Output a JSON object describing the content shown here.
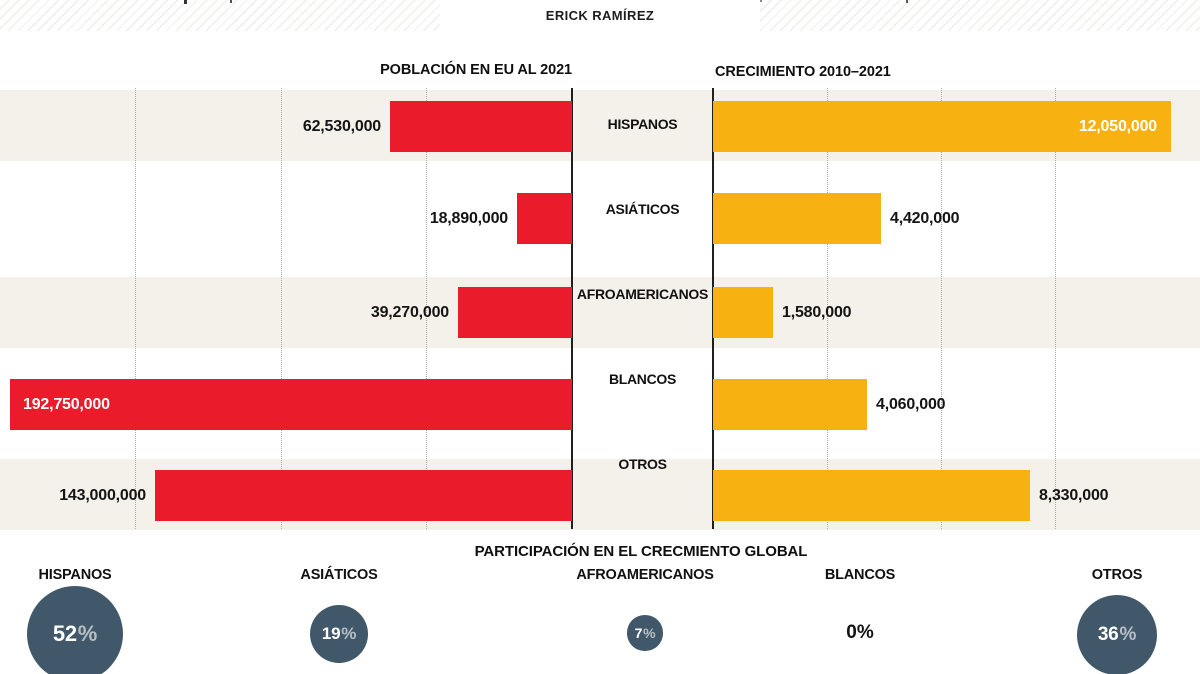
{
  "top": {
    "author": "ERICK RAMÍREZ"
  },
  "sections": {
    "population_title": "POBLACIÓN EN EU AL 2021",
    "growth_title": "CRECIMIENTO 2010–2021",
    "participation_title": "PARTICIPACIÓN EN EL CRECMIENTO GLOBAL"
  },
  "colors": {
    "population_bar": "#ea1c2c",
    "growth_bar": "#f7b211",
    "row_band": "#f4f1ea",
    "bubble": "#41586a",
    "axis": "#1f1f1f"
  },
  "chart_data": [
    {
      "type": "bar",
      "title": "POBLACIÓN EN EU AL 2021",
      "orientation": "horizontal",
      "direction": "right-to-left",
      "categories": [
        "HISPANOS",
        "ASIÁTICOS",
        "AFROAMERICANOS",
        "BLANCOS",
        "OTROS"
      ],
      "values": [
        62530000,
        18890000,
        39270000,
        192750000,
        143000000
      ],
      "labels": [
        "62,530,000",
        "18,890,000",
        "39,270,000",
        "192,750,000",
        "143,000,000"
      ],
      "xlim": [
        0,
        192750000
      ],
      "grid": "dotted vertical lines every 50,000,000",
      "row_shading": "alternate beige bands on rows 1, 3, 5",
      "bar_color": "#ea1c2c"
    },
    {
      "type": "bar",
      "title": "CRECIMIENTO 2010–2021",
      "orientation": "horizontal",
      "direction": "left-to-right",
      "categories": [
        "HISPANOS",
        "ASIÁTICOS",
        "AFROAMERICANOS",
        "BLANCOS",
        "OTROS"
      ],
      "values": [
        12050000,
        4420000,
        1580000,
        4060000,
        8330000
      ],
      "labels": [
        "12,050,000",
        "4,420,000",
        "1,580,000",
        "4,060,000",
        "8,330,000"
      ],
      "xlim": [
        0,
        12050000
      ],
      "grid": "dotted vertical lines every 3,000,000",
      "bar_color": "#f7b211"
    },
    {
      "type": "bubble",
      "title": "PARTICIPACIÓN EN EL CRECMIENTO GLOBAL",
      "categories": [
        "HISPANOS",
        "ASIÁTICOS",
        "AFROAMERICANOS",
        "BLANCOS",
        "OTROS"
      ],
      "values": [
        52,
        19,
        7,
        0,
        36
      ],
      "labels": [
        "52%",
        "19%",
        "7%",
        "0%",
        "36%"
      ],
      "unit": "percent",
      "layout": "bubble area proportional to percentage; 0% shown as plain text",
      "bubble_color": "#41586a"
    }
  ]
}
